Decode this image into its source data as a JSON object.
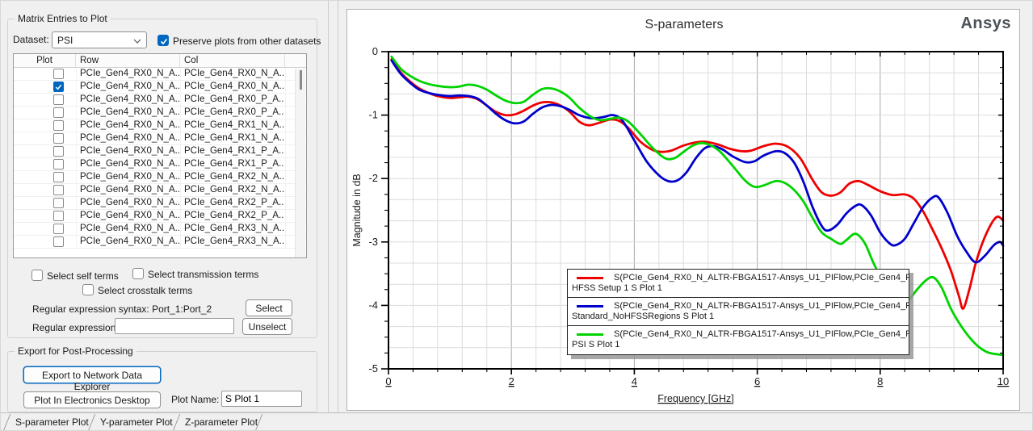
{
  "colors": {
    "window_bg": "#f0f0f0",
    "accent": "#0067c0",
    "panel_bg": "#ffffff",
    "grid_minor": "#dcdcdc",
    "grid_major": "#a9a9a9",
    "frame": "#000000",
    "legend_shadow": "#919191"
  },
  "left_panel": {
    "matrix_group": {
      "title": "Matrix Entries to Plot",
      "dataset_label": "Dataset:",
      "dataset_value": "PSI",
      "preserve_label": "Preserve plots from other datasets",
      "preserve_checked": true,
      "table": {
        "columns": [
          "Plot",
          "Row",
          "Col"
        ],
        "rows": [
          {
            "checked": false,
            "row": "PCIe_Gen4_RX0_N_A...",
            "col": "PCIe_Gen4_RX0_N_A..."
          },
          {
            "checked": true,
            "row": "PCIe_Gen4_RX0_N_A...",
            "col": "PCIe_Gen4_RX0_N_A..."
          },
          {
            "checked": false,
            "row": "PCIe_Gen4_RX0_N_A...",
            "col": "PCIe_Gen4_RX0_P_A..."
          },
          {
            "checked": false,
            "row": "PCIe_Gen4_RX0_N_A...",
            "col": "PCIe_Gen4_RX0_P_A..."
          },
          {
            "checked": false,
            "row": "PCIe_Gen4_RX0_N_A...",
            "col": "PCIe_Gen4_RX1_N_A..."
          },
          {
            "checked": false,
            "row": "PCIe_Gen4_RX0_N_A...",
            "col": "PCIe_Gen4_RX1_N_A..."
          },
          {
            "checked": false,
            "row": "PCIe_Gen4_RX0_N_A...",
            "col": "PCIe_Gen4_RX1_P_A..."
          },
          {
            "checked": false,
            "row": "PCIe_Gen4_RX0_N_A...",
            "col": "PCIe_Gen4_RX1_P_A..."
          },
          {
            "checked": false,
            "row": "PCIe_Gen4_RX0_N_A...",
            "col": "PCIe_Gen4_RX2_N_A..."
          },
          {
            "checked": false,
            "row": "PCIe_Gen4_RX0_N_A...",
            "col": "PCIe_Gen4_RX2_N_A..."
          },
          {
            "checked": false,
            "row": "PCIe_Gen4_RX0_N_A...",
            "col": "PCIe_Gen4_RX2_P_A..."
          },
          {
            "checked": false,
            "row": "PCIe_Gen4_RX0_N_A...",
            "col": "PCIe_Gen4_RX2_P_A..."
          },
          {
            "checked": false,
            "row": "PCIe_Gen4_RX0_N_A...",
            "col": "PCIe_Gen4_RX3_N_A..."
          },
          {
            "checked": false,
            "row": "PCIe_Gen4_RX0_N_A...",
            "col": "PCIe_Gen4_RX3_N_A..."
          }
        ]
      },
      "select_self_label": "Select self terms",
      "select_transmission_label": "Select transmission terms",
      "select_crosstalk_label": "Select crosstalk terms",
      "regex_syntax_label": "Regular expression syntax: Port_1:Port_2",
      "regex_label": "Regular expression:",
      "regex_value": "",
      "select_button": "Select",
      "unselect_button": "Unselect"
    },
    "export_group": {
      "title": "Export for Post-Processing",
      "export_button": "Export to Network Data Explorer",
      "plot_button": "Plot In Electronics Desktop",
      "plot_name_label": "Plot Name:",
      "plot_name_value": "S Plot 1"
    }
  },
  "tabs": [
    {
      "label": "S-parameter Plot",
      "active": true
    },
    {
      "label": "Y-parameter Plot",
      "active": false
    },
    {
      "label": "Z-parameter Plot",
      "active": false
    }
  ],
  "chart": {
    "title": "S-parameters",
    "brand": "Ansys",
    "legend": [
      {
        "color": "#ee0000",
        "text": "S(PCIe_Gen4_RX0_N_ALTR-FBGA1517-Ansys_U1_PIFlow,PCIe_Gen4_R...",
        "sub": "HFSS Setup 1 S Plot 1"
      },
      {
        "color": "#0000cd",
        "text": "S(PCIe_Gen4_RX0_N_ALTR-FBGA1517-Ansys_U1_PIFlow,PCIe_Gen4_R...",
        "sub": "Standard_NoHFSSRegions S Plot 1"
      },
      {
        "color": "#00d300",
        "text": "S(PCIe_Gen4_RX0_N_ALTR-FBGA1517-Ansys_U1_PIFlow,PCIe_Gen4_R...",
        "sub": "PSI S Plot 1"
      }
    ]
  },
  "chart_data": {
    "type": "line",
    "title": "S-parameters",
    "xlabel": "Frequency [GHz]",
    "ylabel": "Magnitude in dB",
    "xlim": [
      0,
      10
    ],
    "ylim": [
      -5,
      0
    ],
    "x_ticks": [
      0,
      2,
      4,
      6,
      8,
      10
    ],
    "y_ticks": [
      0,
      -1,
      -2,
      -3,
      -4,
      -5
    ],
    "x_minor_step": 0.4,
    "x_major_step": 2,
    "y_grid_step": 0.3333333,
    "y_tick_minor": 0.25,
    "y_tick_major": 1,
    "grid": true,
    "legend_position": "lower-center",
    "series": [
      {
        "name": "HFSS Setup 1 S Plot 1",
        "color": "#ee0000",
        "points": [
          [
            0.05,
            -0.12
          ],
          [
            0.2,
            -0.33
          ],
          [
            0.35,
            -0.47
          ],
          [
            0.5,
            -0.58
          ],
          [
            0.65,
            -0.65
          ],
          [
            0.8,
            -0.7
          ],
          [
            1.0,
            -0.73
          ],
          [
            1.15,
            -0.72
          ],
          [
            1.3,
            -0.71
          ],
          [
            1.45,
            -0.75
          ],
          [
            1.6,
            -0.85
          ],
          [
            1.75,
            -0.95
          ],
          [
            1.9,
            -1.0
          ],
          [
            2.05,
            -0.99
          ],
          [
            2.2,
            -0.93
          ],
          [
            2.35,
            -0.85
          ],
          [
            2.5,
            -0.8
          ],
          [
            2.65,
            -0.8
          ],
          [
            2.8,
            -0.85
          ],
          [
            2.95,
            -0.95
          ],
          [
            3.1,
            -1.1
          ],
          [
            3.25,
            -1.16
          ],
          [
            3.4,
            -1.13
          ],
          [
            3.6,
            -1.07
          ],
          [
            3.75,
            -1.09
          ],
          [
            3.9,
            -1.2
          ],
          [
            4.1,
            -1.42
          ],
          [
            4.3,
            -1.55
          ],
          [
            4.45,
            -1.58
          ],
          [
            4.6,
            -1.56
          ],
          [
            4.8,
            -1.48
          ],
          [
            5.0,
            -1.43
          ],
          [
            5.15,
            -1.42
          ],
          [
            5.35,
            -1.46
          ],
          [
            5.55,
            -1.53
          ],
          [
            5.75,
            -1.57
          ],
          [
            5.9,
            -1.56
          ],
          [
            6.1,
            -1.49
          ],
          [
            6.3,
            -1.45
          ],
          [
            6.5,
            -1.5
          ],
          [
            6.7,
            -1.68
          ],
          [
            6.9,
            -2.02
          ],
          [
            7.05,
            -2.22
          ],
          [
            7.2,
            -2.27
          ],
          [
            7.35,
            -2.22
          ],
          [
            7.5,
            -2.08
          ],
          [
            7.65,
            -2.04
          ],
          [
            7.8,
            -2.1
          ],
          [
            8.0,
            -2.2
          ],
          [
            8.2,
            -2.26
          ],
          [
            8.4,
            -2.25
          ],
          [
            8.55,
            -2.32
          ],
          [
            8.7,
            -2.52
          ],
          [
            8.85,
            -2.8
          ],
          [
            9.0,
            -3.1
          ],
          [
            9.15,
            -3.45
          ],
          [
            9.28,
            -3.85
          ],
          [
            9.35,
            -4.05
          ],
          [
            9.45,
            -3.75
          ],
          [
            9.55,
            -3.35
          ],
          [
            9.65,
            -3.05
          ],
          [
            9.75,
            -2.82
          ],
          [
            9.85,
            -2.65
          ],
          [
            9.92,
            -2.6
          ],
          [
            10.0,
            -2.66
          ]
        ]
      },
      {
        "name": "Standard_NoHFSSRegions S Plot 1",
        "color": "#0000cd",
        "points": [
          [
            0.05,
            -0.14
          ],
          [
            0.2,
            -0.35
          ],
          [
            0.35,
            -0.49
          ],
          [
            0.5,
            -0.6
          ],
          [
            0.65,
            -0.65
          ],
          [
            0.8,
            -0.68
          ],
          [
            1.0,
            -0.7
          ],
          [
            1.15,
            -0.69
          ],
          [
            1.3,
            -0.7
          ],
          [
            1.45,
            -0.74
          ],
          [
            1.6,
            -0.85
          ],
          [
            1.75,
            -0.98
          ],
          [
            1.9,
            -1.08
          ],
          [
            2.05,
            -1.13
          ],
          [
            2.2,
            -1.1
          ],
          [
            2.35,
            -0.98
          ],
          [
            2.5,
            -0.88
          ],
          [
            2.65,
            -0.84
          ],
          [
            2.8,
            -0.86
          ],
          [
            2.95,
            -0.92
          ],
          [
            3.1,
            -1.0
          ],
          [
            3.3,
            -1.05
          ],
          [
            3.5,
            -1.03
          ],
          [
            3.65,
            -1.0
          ],
          [
            3.8,
            -1.08
          ],
          [
            4.0,
            -1.4
          ],
          [
            4.2,
            -1.73
          ],
          [
            4.4,
            -1.95
          ],
          [
            4.55,
            -2.04
          ],
          [
            4.7,
            -2.03
          ],
          [
            4.85,
            -1.9
          ],
          [
            5.0,
            -1.68
          ],
          [
            5.15,
            -1.52
          ],
          [
            5.3,
            -1.49
          ],
          [
            5.45,
            -1.55
          ],
          [
            5.6,
            -1.65
          ],
          [
            5.8,
            -1.74
          ],
          [
            5.95,
            -1.73
          ],
          [
            6.1,
            -1.64
          ],
          [
            6.3,
            -1.57
          ],
          [
            6.45,
            -1.6
          ],
          [
            6.6,
            -1.75
          ],
          [
            6.75,
            -2.05
          ],
          [
            6.9,
            -2.45
          ],
          [
            7.05,
            -2.75
          ],
          [
            7.15,
            -2.82
          ],
          [
            7.3,
            -2.73
          ],
          [
            7.45,
            -2.55
          ],
          [
            7.6,
            -2.43
          ],
          [
            7.7,
            -2.42
          ],
          [
            7.85,
            -2.58
          ],
          [
            8.0,
            -2.85
          ],
          [
            8.15,
            -3.02
          ],
          [
            8.25,
            -3.05
          ],
          [
            8.4,
            -2.95
          ],
          [
            8.55,
            -2.7
          ],
          [
            8.7,
            -2.45
          ],
          [
            8.85,
            -2.3
          ],
          [
            8.95,
            -2.3
          ],
          [
            9.1,
            -2.55
          ],
          [
            9.25,
            -2.9
          ],
          [
            9.4,
            -3.15
          ],
          [
            9.55,
            -3.32
          ],
          [
            9.7,
            -3.22
          ],
          [
            9.85,
            -3.05
          ],
          [
            9.95,
            -3.0
          ],
          [
            10.0,
            -3.06
          ]
        ]
      },
      {
        "name": "PSI S Plot 1",
        "color": "#00d300",
        "points": [
          [
            0.05,
            -0.08
          ],
          [
            0.2,
            -0.27
          ],
          [
            0.35,
            -0.38
          ],
          [
            0.5,
            -0.46
          ],
          [
            0.65,
            -0.51
          ],
          [
            0.8,
            -0.54
          ],
          [
            1.0,
            -0.56
          ],
          [
            1.15,
            -0.55
          ],
          [
            1.3,
            -0.52
          ],
          [
            1.45,
            -0.54
          ],
          [
            1.6,
            -0.6
          ],
          [
            1.75,
            -0.69
          ],
          [
            1.9,
            -0.77
          ],
          [
            2.05,
            -0.81
          ],
          [
            2.2,
            -0.79
          ],
          [
            2.35,
            -0.68
          ],
          [
            2.5,
            -0.59
          ],
          [
            2.65,
            -0.58
          ],
          [
            2.8,
            -0.63
          ],
          [
            2.95,
            -0.73
          ],
          [
            3.1,
            -0.88
          ],
          [
            3.3,
            -1.03
          ],
          [
            3.45,
            -1.08
          ],
          [
            3.6,
            -1.06
          ],
          [
            3.75,
            -1.04
          ],
          [
            3.9,
            -1.1
          ],
          [
            4.1,
            -1.3
          ],
          [
            4.3,
            -1.52
          ],
          [
            4.5,
            -1.68
          ],
          [
            4.65,
            -1.68
          ],
          [
            4.8,
            -1.58
          ],
          [
            4.95,
            -1.48
          ],
          [
            5.1,
            -1.44
          ],
          [
            5.25,
            -1.48
          ],
          [
            5.4,
            -1.58
          ],
          [
            5.6,
            -1.8
          ],
          [
            5.8,
            -2.03
          ],
          [
            5.95,
            -2.13
          ],
          [
            6.1,
            -2.11
          ],
          [
            6.3,
            -2.04
          ],
          [
            6.45,
            -2.07
          ],
          [
            6.6,
            -2.18
          ],
          [
            6.75,
            -2.36
          ],
          [
            6.9,
            -2.62
          ],
          [
            7.05,
            -2.85
          ],
          [
            7.2,
            -2.95
          ],
          [
            7.35,
            -3.03
          ],
          [
            7.45,
            -2.97
          ],
          [
            7.6,
            -2.87
          ],
          [
            7.75,
            -3.02
          ],
          [
            7.9,
            -3.35
          ],
          [
            8.1,
            -3.7
          ],
          [
            8.3,
            -3.88
          ],
          [
            8.45,
            -3.92
          ],
          [
            8.6,
            -3.75
          ],
          [
            8.75,
            -3.6
          ],
          [
            8.87,
            -3.56
          ],
          [
            9.0,
            -3.72
          ],
          [
            9.15,
            -4.05
          ],
          [
            9.3,
            -4.3
          ],
          [
            9.45,
            -4.5
          ],
          [
            9.6,
            -4.65
          ],
          [
            9.75,
            -4.74
          ],
          [
            9.9,
            -4.77
          ],
          [
            10.0,
            -4.78
          ]
        ]
      }
    ]
  }
}
